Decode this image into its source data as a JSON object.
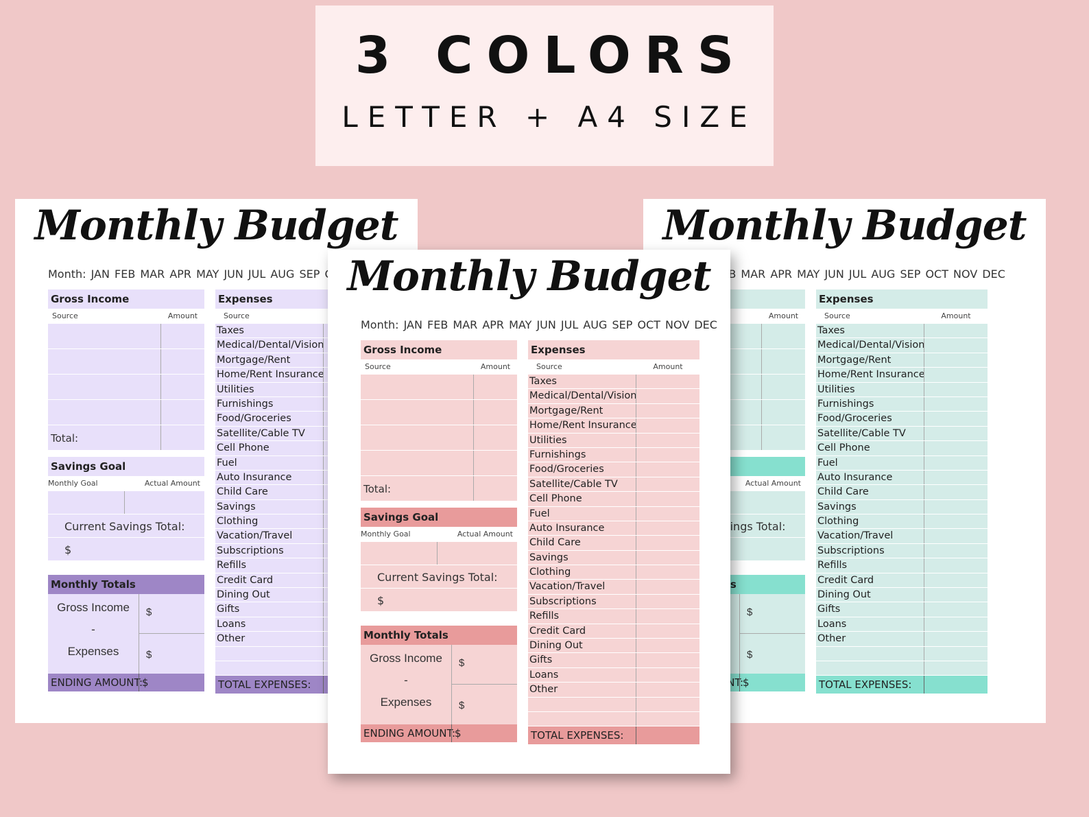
{
  "banner": {
    "headline": "3 COLORS",
    "subline": "LETTER + A4 SIZE"
  },
  "worksheet": {
    "title": "Monthly Budget",
    "month_label": "Month:",
    "months": [
      "JAN",
      "FEB",
      "MAR",
      "APR",
      "MAY",
      "JUN",
      "JUL",
      "AUG",
      "SEP",
      "OCT",
      "NOV",
      "DEC"
    ],
    "gross_income": {
      "header": "Gross Income",
      "col_source": "Source",
      "col_amount": "Amount",
      "total_label": "Total:"
    },
    "savings": {
      "header": "Savings Goal",
      "col_monthly_goal": "Monthly Goal",
      "col_actual_amount": "Actual Amount",
      "current_total_label": "Current Savings Total:",
      "dollar": "$"
    },
    "monthly_totals": {
      "header": "Monthly Totals",
      "gross_income_label": "Gross Income",
      "minus": "-",
      "expenses_label": "Expenses",
      "dollar": "$",
      "ending_label": "ENDING AMOUNT:"
    },
    "expenses": {
      "header": "Expenses",
      "col_source": "Source",
      "col_amount": "Amount",
      "items": [
        "Taxes",
        "Medical/Dental/Vision",
        "Mortgage/Rent",
        "Home/Rent Insurance",
        "Utilities",
        "Furnishings",
        "Food/Groceries",
        "Satellite/Cable TV",
        "Cell Phone",
        "Fuel",
        "Auto Insurance",
        "Child Care",
        "Savings",
        "Clothing",
        "Vacation/Travel",
        "Subscriptions",
        "Refills",
        "Credit Card",
        "Dining Out",
        "Gifts",
        "Loans",
        "Other"
      ],
      "total_label": "TOTAL EXPENSES:"
    }
  },
  "colors": {
    "background": "#f0c8c8",
    "banner_bg": "#fdeeee",
    "purple": "#9e86c6",
    "pink": "#e89b9b",
    "teal": "#86e0cf"
  }
}
